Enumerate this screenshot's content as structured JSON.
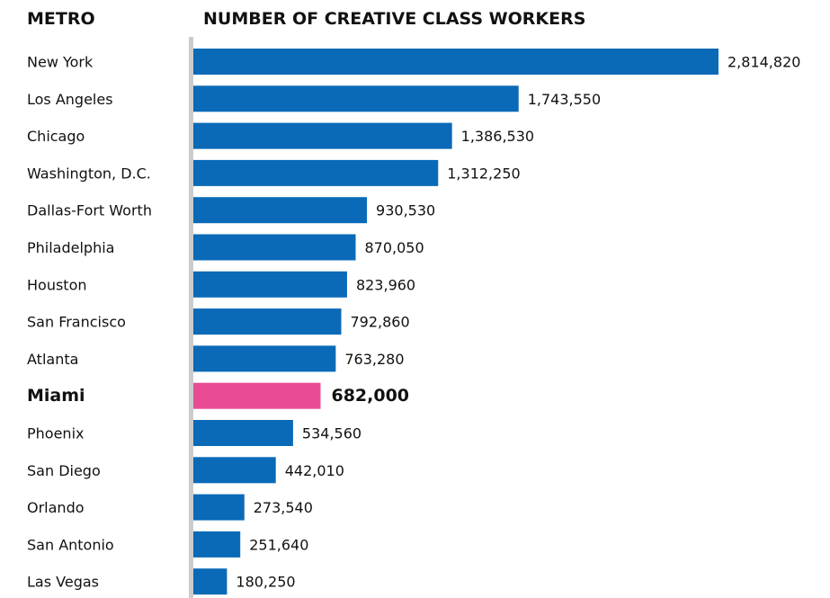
{
  "headers": {
    "metro": "METRO",
    "value": "NUMBER OF CREATIVE CLASS WORKERS"
  },
  "colors": {
    "bar": "#0a6ab7",
    "highlight": "#ea4c94",
    "axis": "#cccccc"
  },
  "chart_data": {
    "type": "bar",
    "orientation": "horizontal",
    "categories": [
      "New York",
      "Los Angeles",
      "Chicago",
      "Washington, D.C.",
      "Dallas-Fort Worth",
      "Philadelphia",
      "Houston",
      "San Francisco",
      "Atlanta",
      "Miami",
      "Phoenix",
      "San Diego",
      "Orlando",
      "San Antonio",
      "Las Vegas"
    ],
    "values": [
      2814820,
      1743550,
      1386530,
      1312250,
      930530,
      870050,
      823960,
      792860,
      763280,
      682000,
      534560,
      442010,
      273540,
      251640,
      180250
    ],
    "value_labels": [
      "2,814,820",
      "1,743,550",
      "1,386,530",
      "1,312,250",
      "930,530",
      "870,050",
      "823,960",
      "792,860",
      "763,280",
      "682,000",
      "534,560",
      "442,010",
      "273,540",
      "251,640",
      "180,250"
    ],
    "highlight": "Miami",
    "xlim": [
      0,
      2814820
    ],
    "grid": false,
    "legend": "none"
  }
}
